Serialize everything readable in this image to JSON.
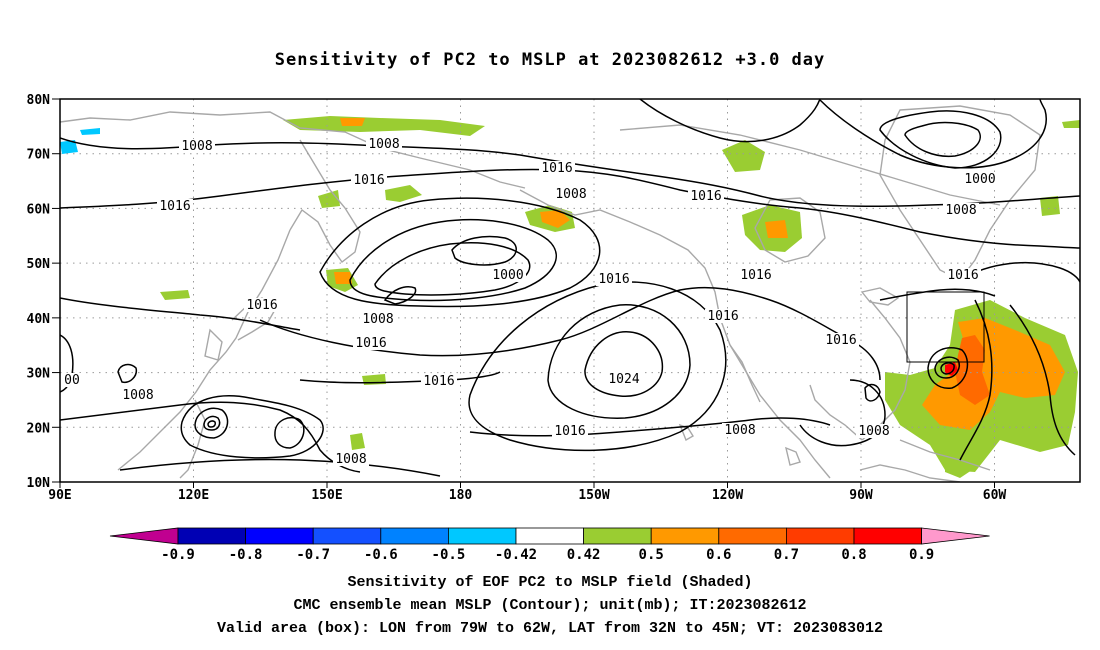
{
  "title": "Sensitivity of PC2 to MSLP at 2023082612 +3.0 day",
  "map": {
    "lat_labels": [
      "80N",
      "70N",
      "60N",
      "50N",
      "40N",
      "30N",
      "20N",
      "10N"
    ],
    "lon_labels": [
      "90E",
      "120E",
      "150E",
      "180",
      "150W",
      "120W",
      "90W",
      "60W"
    ],
    "contour_labels": [
      "1008",
      "1008",
      "1016",
      "1016",
      "1016",
      "1008",
      "1008",
      "1000",
      "1000",
      "1016",
      "1016",
      "1016",
      "1016",
      "1008",
      "1016",
      "1024",
      "1016",
      "1016",
      "1016",
      "1016",
      "1008",
      "1008",
      "1008",
      "1008",
      "00",
      "1016"
    ],
    "valid_box": {
      "lon_from": "79W",
      "lon_to": "62W",
      "lat_from": "32N",
      "lat_to": "45N"
    },
    "colors": {
      "contour": "#000000",
      "coastline": "#a8a8a8",
      "grid": "#9a9a9a",
      "shade_0_42": "#9acd32",
      "shade_0_5": "#ff9900",
      "shade_0_6": "#ff6a00",
      "shade_0_7": "#ff3c00",
      "shade_0_8": "#ff0000",
      "shade_neg_0_5": "#00c8ff"
    }
  },
  "colorbar": {
    "labels": [
      "-0.9",
      "-0.8",
      "-0.7",
      "-0.6",
      "-0.5",
      "-0.42",
      "0.42",
      "0.5",
      "0.6",
      "0.7",
      "0.8",
      "0.9"
    ],
    "colors": [
      "#c00090",
      "#0000b4",
      "#0000ff",
      "#1450ff",
      "#0082ff",
      "#00c8ff",
      "#ffffff",
      "#9acd32",
      "#ff9900",
      "#ff6a00",
      "#ff3c00",
      "#ff0000",
      "#ff99cc"
    ]
  },
  "captions": [
    "Sensitivity of EOF PC2 to MSLP field (Shaded)",
    "CMC ensemble mean MSLP (Contour); unit(mb); IT:2023082612",
    "Valid area (box): LON from 79W to 62W, LAT from 32N to 45N; VT: 2023083012"
  ]
}
